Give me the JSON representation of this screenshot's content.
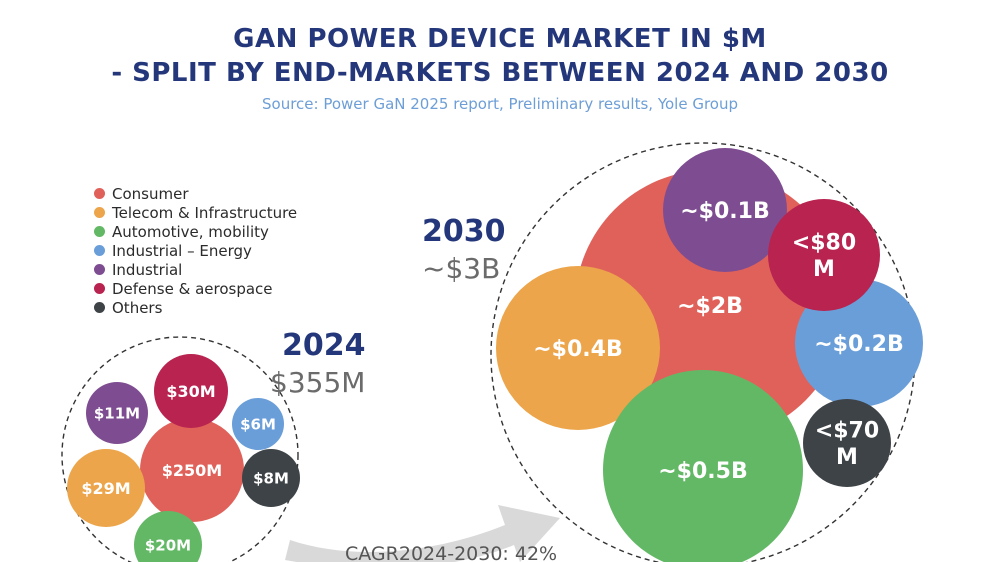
{
  "title_line1": "GAN POWER DEVICE MARKET IN $M",
  "title_line2": "- SPLIT BY END-MARKETS BETWEEN 2024 AND 2030",
  "source": "Source: Power GaN 2025 report, Preliminary results, Yole Group",
  "legend": [
    {
      "label": "Consumer",
      "color": "#e0615a"
    },
    {
      "label": "Telecom & Infrastructure",
      "color": "#eca54a"
    },
    {
      "label": "Automotive, mobility",
      "color": "#63b866"
    },
    {
      "label": "Industrial – Energy",
      "color": "#6a9ed9"
    },
    {
      "label": "Industrial",
      "color": "#7e4d91"
    },
    {
      "label": "Defense & aerospace",
      "color": "#b82350"
    },
    {
      "label": "Others",
      "color": "#3d4347"
    }
  ],
  "year_2024": {
    "year": "2024",
    "total": "$355M"
  },
  "year_2030": {
    "year": "2030",
    "total": "~$3B"
  },
  "cagr_label": "CAGR2024-2030: 42%",
  "chart_data": {
    "type": "bubble",
    "title": "GaN power device market in $M - split by end-markets between 2024 and 2030",
    "unit": "$M",
    "cagr_2024_2030_percent": 42,
    "series": [
      {
        "name": "2024",
        "total": 355,
        "values": [
          {
            "segment": "Consumer",
            "value": 250,
            "label": "$250M"
          },
          {
            "segment": "Telecom & Infrastructure",
            "value": 29,
            "label": "$29M"
          },
          {
            "segment": "Automotive, mobility",
            "value": 20,
            "label": "$20M"
          },
          {
            "segment": "Industrial – Energy",
            "value": 6,
            "label": "$6M"
          },
          {
            "segment": "Industrial",
            "value": 11,
            "label": "$11M"
          },
          {
            "segment": "Defense & aerospace",
            "value": 30,
            "label": "$30M"
          },
          {
            "segment": "Others",
            "value": 8,
            "label": "$8M"
          }
        ]
      },
      {
        "name": "2030",
        "total": 3000,
        "values": [
          {
            "segment": "Consumer",
            "value": 2000,
            "label": "~$2B"
          },
          {
            "segment": "Telecom & Infrastructure",
            "value": 400,
            "label": "~$0.4B"
          },
          {
            "segment": "Automotive, mobility",
            "value": 500,
            "label": "~$0.5B"
          },
          {
            "segment": "Industrial – Energy",
            "value": 200,
            "label": "~$0.2B"
          },
          {
            "segment": "Industrial",
            "value": 100,
            "label": "~$0.1B"
          },
          {
            "segment": "Defense & aerospace",
            "value": 80,
            "label": "<$80 M"
          },
          {
            "segment": "Others",
            "value": 70,
            "label": "<$70 M"
          }
        ]
      }
    ]
  }
}
